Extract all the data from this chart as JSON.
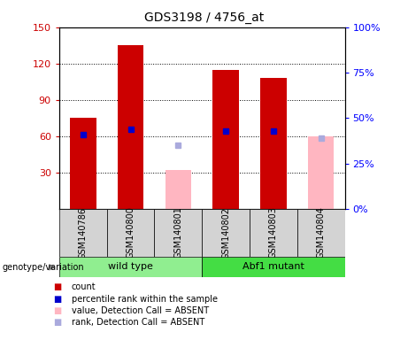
{
  "title": "GDS3198 / 4756_at",
  "samples": [
    "GSM140786",
    "GSM140800",
    "GSM140801",
    "GSM140802",
    "GSM140803",
    "GSM140804"
  ],
  "absent": [
    false,
    false,
    true,
    false,
    false,
    true
  ],
  "count_values": [
    75,
    135,
    null,
    115,
    108,
    null
  ],
  "rank_pct": [
    41,
    44,
    null,
    43,
    43,
    null
  ],
  "absent_count_values": [
    null,
    null,
    32,
    null,
    null,
    60
  ],
  "absent_rank_pct": [
    null,
    null,
    35,
    null,
    null,
    39
  ],
  "ylim_left": [
    0,
    150
  ],
  "ylim_right": [
    0,
    100
  ],
  "yticks_left": [
    30,
    60,
    90,
    120,
    150
  ],
  "yticks_right": [
    0,
    25,
    50,
    75,
    100
  ],
  "ytick_labels_right": [
    "0%",
    "25%",
    "50%",
    "75%",
    "100%"
  ],
  "bar_width": 0.55,
  "red_color": "#CC0000",
  "pink_color": "#FFB6C1",
  "blue_color": "#0000CC",
  "light_blue_color": "#AAAADD",
  "wt_color": "#90EE90",
  "abf_color": "#44DD44",
  "legend_labels": [
    "count",
    "percentile rank within the sample",
    "value, Detection Call = ABSENT",
    "rank, Detection Call = ABSENT"
  ]
}
